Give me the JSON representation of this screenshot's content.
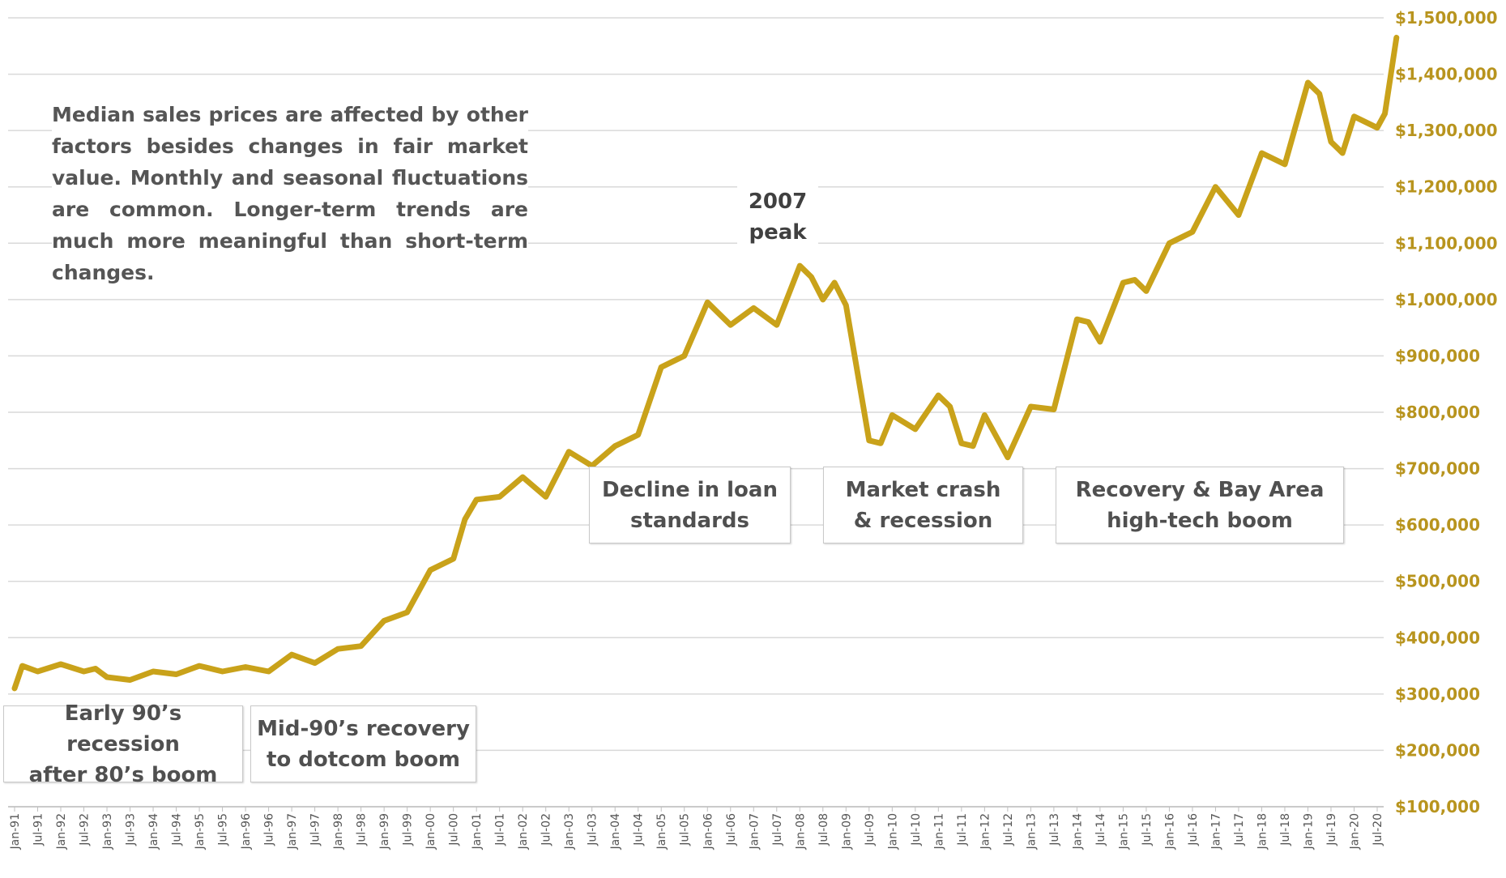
{
  "chart_data": {
    "type": "line",
    "title": "",
    "xlabel": "",
    "ylabel": "",
    "ylim": [
      100000,
      1500000
    ],
    "y_ticks": [
      100000,
      200000,
      300000,
      400000,
      500000,
      600000,
      700000,
      800000,
      900000,
      1000000,
      1100000,
      1200000,
      1300000,
      1400000,
      1500000
    ],
    "y_tick_labels": [
      "$100,000",
      "$200,000",
      "$300,000",
      "$400,000",
      "$500,000",
      "$600,000",
      "$700,000",
      "$800,000",
      "$900,000",
      "$1,000,000",
      "$1,100,000",
      "$1,200,000",
      "$1,300,000",
      "$1,400,000",
      "$1,500,000"
    ],
    "y_axis_position": "right",
    "grid": "horizontal",
    "legend": "none",
    "x_tick_labels": [
      "Jan-91",
      "Jul-91",
      "Jan-92",
      "Jul-92",
      "Jan-93",
      "Jul-93",
      "Jan-94",
      "Jul-94",
      "Jan-95",
      "Jul-95",
      "Jan-96",
      "Jul-96",
      "Jan-97",
      "Jul-97",
      "Jan-98",
      "Jul-98",
      "Jan-99",
      "Jul-99",
      "Jan-00",
      "Jul-00",
      "Jan-01",
      "Jul-01",
      "Jan-02",
      "Jul-02",
      "Jan-03",
      "Jul-03",
      "Jan-04",
      "Jul-04",
      "Jan-05",
      "Jul-05",
      "Jan-06",
      "Jul-06",
      "Jan-07",
      "Jul-07",
      "Jan-08",
      "Jul-08",
      "Jan-09",
      "Jul-09",
      "Jan-10",
      "Jul-10",
      "Jan-11",
      "Jul-11",
      "Jan-12",
      "Jul-12",
      "Jan-13",
      "Jul-13",
      "Jan-14",
      "Jul-14",
      "Jan-15",
      "Jul-15",
      "Jan-16",
      "Jul-16",
      "Jan-17",
      "Jul-17",
      "Jan-18",
      "Jul-18",
      "Jan-19",
      "Jul-19",
      "Jan-20",
      "Jul-20"
    ],
    "series": [
      {
        "color": "#c9a21a",
        "points": [
          [
            "Jan-91",
            310000
          ],
          [
            "Mar-91",
            350000
          ],
          [
            "Jul-91",
            340000
          ],
          [
            "Jan-92",
            353000
          ],
          [
            "Jul-92",
            340000
          ],
          [
            "Oct-92",
            345000
          ],
          [
            "Jan-93",
            330000
          ],
          [
            "Jul-93",
            325000
          ],
          [
            "Jan-94",
            340000
          ],
          [
            "Jul-94",
            335000
          ],
          [
            "Jan-95",
            350000
          ],
          [
            "Jul-95",
            340000
          ],
          [
            "Jan-96",
            348000
          ],
          [
            "Jul-96",
            340000
          ],
          [
            "Jan-97",
            370000
          ],
          [
            "Jul-97",
            355000
          ],
          [
            "Jan-98",
            380000
          ],
          [
            "Jul-98",
            385000
          ],
          [
            "Jan-99",
            430000
          ],
          [
            "Jul-99",
            445000
          ],
          [
            "Jan-00",
            520000
          ],
          [
            "Jul-00",
            540000
          ],
          [
            "Oct-00",
            610000
          ],
          [
            "Jan-01",
            645000
          ],
          [
            "Jul-01",
            650000
          ],
          [
            "Jan-02",
            685000
          ],
          [
            "Jul-02",
            650000
          ],
          [
            "Jan-03",
            730000
          ],
          [
            "Jul-03",
            705000
          ],
          [
            "Jan-04",
            740000
          ],
          [
            "Jul-04",
            760000
          ],
          [
            "Jan-05",
            880000
          ],
          [
            "Jul-05",
            900000
          ],
          [
            "Jan-06",
            995000
          ],
          [
            "Apr-06",
            975000
          ],
          [
            "Jul-06",
            955000
          ],
          [
            "Jan-07",
            985000
          ],
          [
            "Jul-07",
            955000
          ],
          [
            "Jan-08",
            1060000
          ],
          [
            "Apr-08",
            1040000
          ],
          [
            "Jul-08",
            1000000
          ],
          [
            "Oct-08",
            1030000
          ],
          [
            "Jan-09",
            990000
          ],
          [
            "Jul-09",
            750000
          ],
          [
            "Oct-09",
            745000
          ],
          [
            "Jan-10",
            795000
          ],
          [
            "Jul-10",
            770000
          ],
          [
            "Jan-11",
            830000
          ],
          [
            "Apr-11",
            810000
          ],
          [
            "Jul-11",
            745000
          ],
          [
            "Oct-11",
            740000
          ],
          [
            "Jan-12",
            795000
          ],
          [
            "Jul-12",
            720000
          ],
          [
            "Jan-13",
            810000
          ],
          [
            "Jul-13",
            805000
          ],
          [
            "Jan-14",
            965000
          ],
          [
            "Apr-14",
            960000
          ],
          [
            "Jul-14",
            925000
          ],
          [
            "Jan-15",
            1030000
          ],
          [
            "Apr-15",
            1035000
          ],
          [
            "Jul-15",
            1015000
          ],
          [
            "Jan-16",
            1100000
          ],
          [
            "Apr-16",
            1110000
          ],
          [
            "Jul-16",
            1120000
          ],
          [
            "Jan-17",
            1200000
          ],
          [
            "Jul-17",
            1150000
          ],
          [
            "Jan-18",
            1260000
          ],
          [
            "Jul-18",
            1240000
          ],
          [
            "Jan-19",
            1385000
          ],
          [
            "Apr-19",
            1365000
          ],
          [
            "Jul-19",
            1280000
          ],
          [
            "Oct-19",
            1260000
          ],
          [
            "Jan-20",
            1325000
          ],
          [
            "Jul-20",
            1305000
          ],
          [
            "Sep-20",
            1330000
          ],
          [
            "Dec-20",
            1465000
          ]
        ]
      }
    ],
    "annotations": {
      "note": "Median sales prices are affected by other factors besides changes in fair market value. Monthly and seasonal fluctuations are common. Longer-term trends are much more meaningful than short-term changes.",
      "peak_line1": "2007",
      "peak_line2": "peak",
      "box1_line1": "Early 90’s recession",
      "box1_line2": "after 80’s boom",
      "box2_line1": "Mid-90’s recovery",
      "box2_line2": "to dotcom boom",
      "box3_line1": "Decline in loan",
      "box3_line2": "standards",
      "box4_line1": "Market crash",
      "box4_line2": "& recession",
      "box5_line1": "Recovery & Bay Area",
      "box5_line2": "high-tech boom"
    }
  }
}
